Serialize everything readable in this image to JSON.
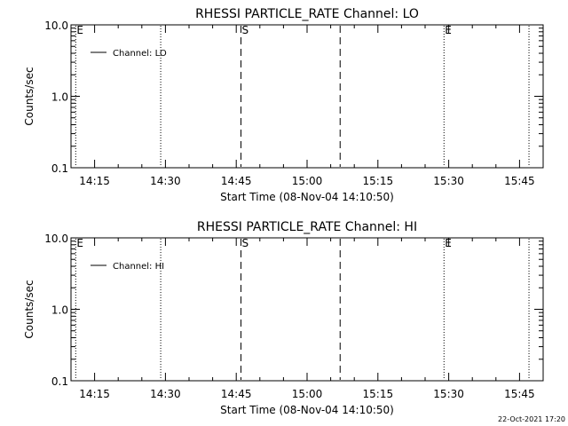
{
  "footer": {
    "timestamp": "22-Oct-2021 17:20"
  },
  "chart_data": [
    {
      "type": "line",
      "title": "RHESSI PARTICLE_RATE Channel: LO",
      "xlabel": "Start Time (08-Nov-04 14:10:50)",
      "ylabel": "Counts/sec",
      "yscale": "log",
      "ylim": [
        0.1,
        10.0
      ],
      "xlim": [
        "14:10",
        "15:50"
      ],
      "x_ticks": [
        "14:15",
        "14:30",
        "14:45",
        "15:00",
        "15:15",
        "15:30",
        "15:45"
      ],
      "y_ticks": [
        "0.1",
        "1.0",
        "10.0"
      ],
      "series": [
        {
          "name": "Channel: LO",
          "x": [],
          "y": []
        }
      ],
      "legend": {
        "position": "top-left",
        "entries": [
          "Channel: LO"
        ]
      },
      "markers": [
        {
          "time": "14:11",
          "style": "dotted",
          "label": "E"
        },
        {
          "time": "14:29",
          "style": "dotted",
          "label": ""
        },
        {
          "time": "14:46",
          "style": "dashed",
          "label": "S"
        },
        {
          "time": "15:07",
          "style": "dashed",
          "label": ""
        },
        {
          "time": "15:29",
          "style": "dotted",
          "label": "E"
        },
        {
          "time": "15:47",
          "style": "dotted",
          "label": ""
        }
      ]
    },
    {
      "type": "line",
      "title": "RHESSI PARTICLE_RATE Channel: HI",
      "xlabel": "Start Time (08-Nov-04 14:10:50)",
      "ylabel": "Counts/sec",
      "yscale": "log",
      "ylim": [
        0.1,
        10.0
      ],
      "xlim": [
        "14:10",
        "15:50"
      ],
      "x_ticks": [
        "14:15",
        "14:30",
        "14:45",
        "15:00",
        "15:15",
        "15:30",
        "15:45"
      ],
      "y_ticks": [
        "0.1",
        "1.0",
        "10.0"
      ],
      "series": [
        {
          "name": "Channel: HI",
          "x": [],
          "y": []
        }
      ],
      "legend": {
        "position": "top-left",
        "entries": [
          "Channel: HI"
        ]
      },
      "markers": [
        {
          "time": "14:11",
          "style": "dotted",
          "label": "E"
        },
        {
          "time": "14:29",
          "style": "dotted",
          "label": ""
        },
        {
          "time": "14:46",
          "style": "dashed",
          "label": "S"
        },
        {
          "time": "15:07",
          "style": "dashed",
          "label": ""
        },
        {
          "time": "15:29",
          "style": "dotted",
          "label": "E"
        },
        {
          "time": "15:47",
          "style": "dotted",
          "label": ""
        }
      ]
    }
  ]
}
